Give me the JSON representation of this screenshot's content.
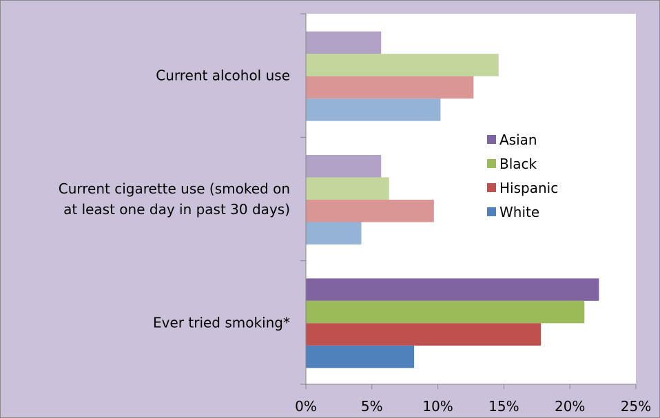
{
  "chart_data": {
    "type": "bar",
    "orientation": "horizontal",
    "categories": [
      [
        "Current alcohol  use"
      ],
      [
        "Current cigarette use (smoked on",
        "at least one day in past 30 days)"
      ],
      [
        "Ever tried smoking*"
      ]
    ],
    "series": [
      {
        "name": "Asian",
        "values": [
          5.7,
          5.7,
          22.2
        ],
        "color": "#8064a2",
        "faded": [
          true,
          true,
          false
        ]
      },
      {
        "name": "Black",
        "values": [
          14.6,
          6.3,
          21.1
        ],
        "color": "#9bbb59",
        "faded": [
          true,
          true,
          false
        ]
      },
      {
        "name": "Hispanic",
        "values": [
          12.7,
          9.7,
          17.8
        ],
        "color": "#c0504d",
        "faded": [
          true,
          true,
          false
        ]
      },
      {
        "name": "White",
        "values": [
          10.2,
          4.2,
          8.2
        ],
        "color": "#4f81bd",
        "faded": [
          true,
          true,
          false
        ]
      }
    ],
    "faded_colors": {
      "Asian": "#b3a2c7",
      "Black": "#c3d69b",
      "Hispanic": "#d99694",
      "White": "#95b3d7"
    },
    "xlim": [
      0,
      25
    ],
    "xticks": [
      "0%",
      "5%",
      "10%",
      "15%",
      "20%",
      "25%"
    ],
    "legend_position": "right",
    "grid": false,
    "plot_background": "#ffffff",
    "chart_background": "#ccc1da"
  }
}
